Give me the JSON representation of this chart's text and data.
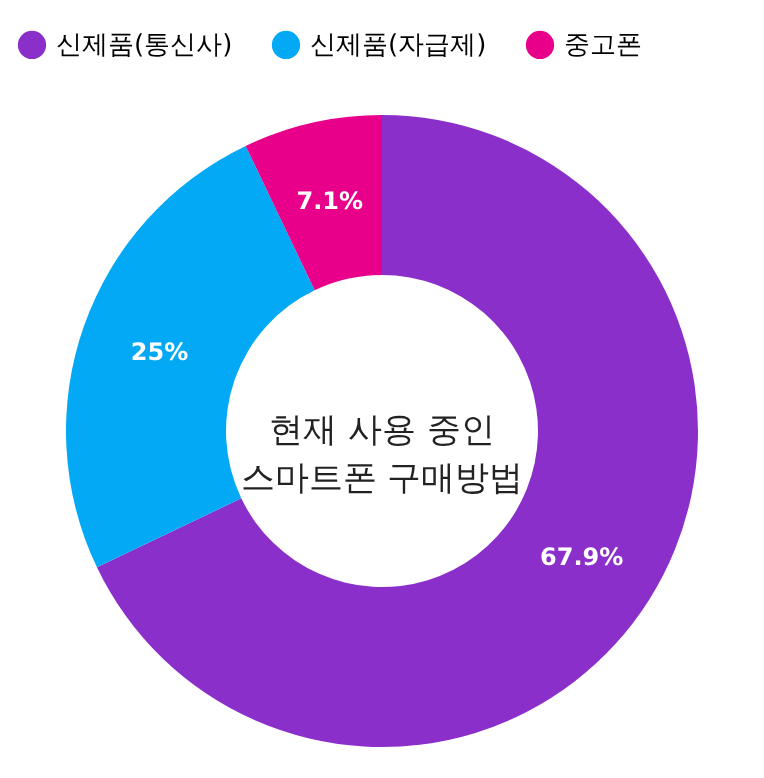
{
  "chart_data": {
    "type": "donut",
    "title": "현재 사용 중인\n스마트폰 구매방법",
    "categories": [
      "신제품(통신사)",
      "신제품(자급제)",
      "중고폰"
    ],
    "values": [
      67.9,
      25,
      7.1
    ],
    "colors": [
      "#8b2fca",
      "#03a9f4",
      "#e8008a"
    ],
    "value_labels": [
      "67.9%",
      "25%",
      "7.1%"
    ],
    "legend": "top"
  }
}
